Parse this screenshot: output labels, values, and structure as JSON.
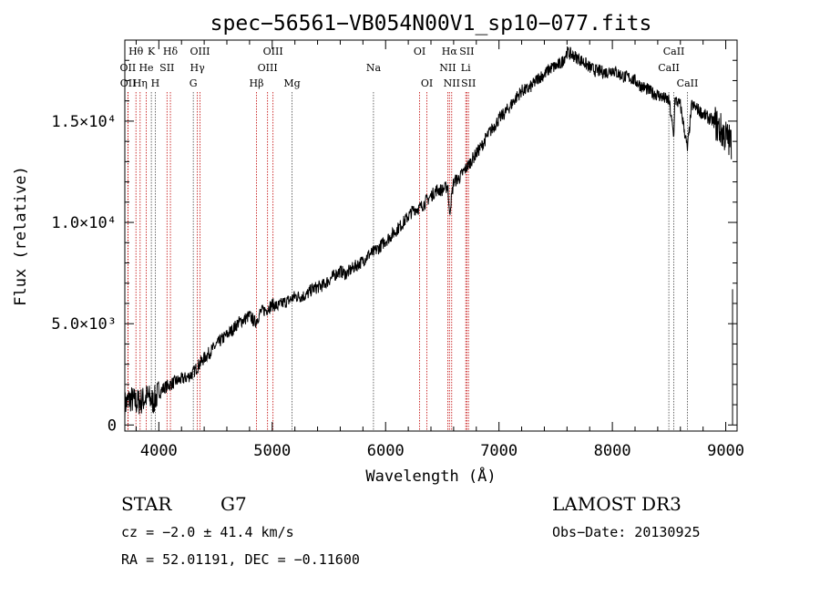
{
  "chart_data": {
    "type": "line",
    "title": "spec−56561−VB054N00V1_sp10−077.fits",
    "xlabel": "Wavelength (Å)",
    "ylabel": "Flux (relative)",
    "xlim": [
      3700,
      9100
    ],
    "ylim": [
      -300,
      19000
    ],
    "x_ticks": [
      {
        "value": 4000,
        "label": "4000"
      },
      {
        "value": 5000,
        "label": "5000"
      },
      {
        "value": 6000,
        "label": "6000"
      },
      {
        "value": 7000,
        "label": "7000"
      },
      {
        "value": 8000,
        "label": "8000"
      },
      {
        "value": 9000,
        "label": "9000"
      }
    ],
    "y_ticks": [
      {
        "value": 0,
        "label": "0"
      },
      {
        "value": 5000,
        "label": "5.0×10³"
      },
      {
        "value": 10000,
        "label": "1.0×10⁴"
      },
      {
        "value": 15000,
        "label": "1.5×10⁴"
      }
    ],
    "series": [
      {
        "name": "flux",
        "x": [
          3700,
          3750,
          3800,
          3850,
          3900,
          3950,
          4000,
          4050,
          4100,
          4150,
          4200,
          4250,
          4300,
          4350,
          4400,
          4450,
          4500,
          4550,
          4600,
          4650,
          4700,
          4750,
          4800,
          4850,
          4900,
          4950,
          5000,
          5050,
          5100,
          5150,
          5200,
          5250,
          5300,
          5350,
          5400,
          5450,
          5500,
          5550,
          5600,
          5650,
          5700,
          5750,
          5800,
          5850,
          5900,
          5950,
          6000,
          6050,
          6100,
          6150,
          6200,
          6250,
          6300,
          6350,
          6400,
          6450,
          6500,
          6550,
          6562,
          6600,
          6650,
          6700,
          6750,
          6800,
          6850,
          6900,
          6950,
          7000,
          7050,
          7100,
          7150,
          7200,
          7250,
          7300,
          7350,
          7400,
          7450,
          7500,
          7550,
          7600,
          7650,
          7700,
          7750,
          7800,
          7850,
          7900,
          7950,
          8000,
          8050,
          8100,
          8150,
          8200,
          8250,
          8300,
          8350,
          8400,
          8450,
          8500,
          8542,
          8550,
          8600,
          8662,
          8700,
          8750,
          8800,
          8850,
          8900,
          8950,
          9000,
          9050
        ],
        "y": [
          1000,
          1300,
          1100,
          1200,
          1400,
          1150,
          1600,
          1850,
          2000,
          2150,
          2250,
          2350,
          2550,
          2950,
          3300,
          3600,
          3900,
          4200,
          4450,
          4700,
          5050,
          5200,
          5400,
          5050,
          5600,
          5700,
          5950,
          5850,
          6050,
          6150,
          6350,
          6350,
          6400,
          6700,
          6800,
          6900,
          7150,
          7400,
          7600,
          7450,
          7700,
          7900,
          8100,
          8400,
          8550,
          8800,
          9100,
          9350,
          9650,
          9950,
          10300,
          10650,
          10700,
          11000,
          11300,
          11600,
          11600,
          11800,
          10400,
          12000,
          12200,
          12600,
          13000,
          13400,
          13800,
          14300,
          14700,
          15100,
          15400,
          15750,
          16150,
          16500,
          16550,
          16800,
          17150,
          17300,
          17600,
          17700,
          17850,
          18400,
          18250,
          18100,
          17900,
          17650,
          17500,
          17450,
          17400,
          17550,
          17350,
          17200,
          17150,
          17000,
          16750,
          16600,
          16400,
          16300,
          16150,
          16000,
          14200,
          16050,
          15800,
          13600,
          15800,
          15600,
          15350,
          15150,
          14950,
          14600,
          14250,
          13900
        ]
      }
    ],
    "lines": [
      {
        "name": "Hθ",
        "wave": 3798,
        "row": 0,
        "style": "red"
      },
      {
        "name": "OII",
        "wave": 3727,
        "row": 1,
        "style": "red"
      },
      {
        "name": "OII",
        "wave": 3729,
        "row": 2,
        "style": "red"
      },
      {
        "name": "He",
        "wave": 3889,
        "row": 1,
        "style": "red"
      },
      {
        "name": "Hη",
        "wave": 3835,
        "row": 2,
        "style": "red"
      },
      {
        "name": "K",
        "wave": 3934,
        "row": 0,
        "style": "black"
      },
      {
        "name": "H",
        "wave": 3969,
        "row": 2,
        "style": "black"
      },
      {
        "name": "SII",
        "wave": 4072,
        "row": 1,
        "style": "red"
      },
      {
        "name": "Hδ",
        "wave": 4102,
        "row": 0,
        "style": "red"
      },
      {
        "name": "OIII",
        "wave": 4363,
        "row": 0,
        "style": "red"
      },
      {
        "name": "Hγ",
        "wave": 4340,
        "row": 1,
        "style": "red"
      },
      {
        "name": "G",
        "wave": 4304,
        "row": 2,
        "style": "black"
      },
      {
        "name": "Hβ",
        "wave": 4861,
        "row": 2,
        "style": "red"
      },
      {
        "name": "OIII",
        "wave": 5007,
        "row": 0,
        "style": "red"
      },
      {
        "name": "OIII",
        "wave": 4959,
        "row": 1,
        "style": "red"
      },
      {
        "name": "Mg",
        "wave": 5175,
        "row": 2,
        "style": "black"
      },
      {
        "name": "Na",
        "wave": 5893,
        "row": 1,
        "style": "black"
      },
      {
        "name": "OI",
        "wave": 6300,
        "row": 0,
        "style": "red"
      },
      {
        "name": "OI",
        "wave": 6364,
        "row": 2,
        "style": "red"
      },
      {
        "name": "Hα",
        "wave": 6563,
        "row": 0,
        "style": "red"
      },
      {
        "name": "NII",
        "wave": 6548,
        "row": 1,
        "style": "red"
      },
      {
        "name": "NII",
        "wave": 6583,
        "row": 2,
        "style": "red"
      },
      {
        "name": "SII",
        "wave": 6716,
        "row": 0,
        "style": "red"
      },
      {
        "name": "Li",
        "wave": 6707,
        "row": 1,
        "style": "red"
      },
      {
        "name": "SII",
        "wave": 6731,
        "row": 2,
        "style": "red"
      },
      {
        "name": "CaII",
        "wave": 8498,
        "row": 1,
        "style": "black"
      },
      {
        "name": "CaII",
        "wave": 8542,
        "row": 0,
        "style": "black"
      },
      {
        "name": "CaII",
        "wave": 8662,
        "row": 2,
        "style": "black"
      }
    ]
  },
  "info": {
    "object_class": "STAR",
    "subclass": "G7",
    "survey": "LAMOST DR3",
    "cz": "cz = −2.0 ± 41.4 km/s",
    "obs_date": "Obs−Date: 20130925",
    "coords": "RA =  52.01191, DEC =  −0.11600"
  }
}
